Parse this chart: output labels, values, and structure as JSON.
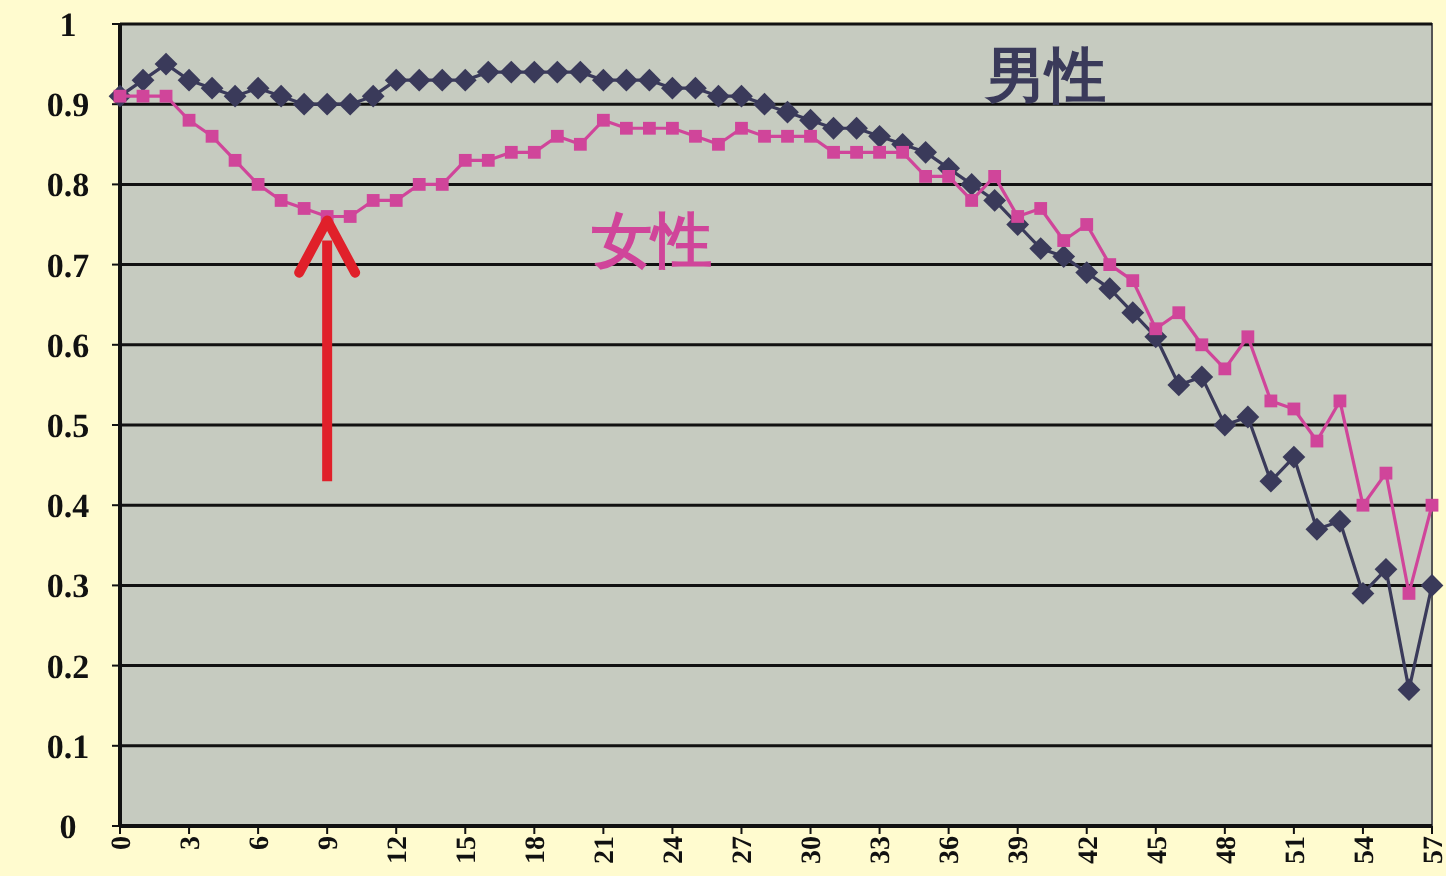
{
  "chart_data": {
    "type": "line",
    "x": [
      0,
      1,
      2,
      3,
      4,
      5,
      6,
      7,
      8,
      9,
      10,
      11,
      12,
      13,
      14,
      15,
      16,
      17,
      18,
      19,
      20,
      21,
      22,
      23,
      24,
      25,
      26,
      27,
      28,
      29,
      30,
      31,
      32,
      33,
      34,
      35,
      36,
      37,
      38,
      39,
      40,
      41,
      42,
      43,
      44,
      45,
      46,
      47,
      48,
      49,
      50,
      51,
      52,
      53,
      54,
      55,
      56,
      57
    ],
    "xlim": [
      0,
      57
    ],
    "xticks": [
      0,
      3,
      6,
      9,
      12,
      15,
      18,
      21,
      24,
      27,
      30,
      33,
      36,
      39,
      42,
      45,
      48,
      51,
      54,
      57
    ],
    "ylim": [
      0,
      1
    ],
    "yticks": [
      0,
      0.1,
      0.2,
      0.3,
      0.4,
      0.5,
      0.6,
      0.7,
      0.8,
      0.9,
      1
    ],
    "grid": "y",
    "line_style": "solid",
    "series": [
      {
        "name": "男性",
        "color": "#3a3a5a",
        "marker": "diamond",
        "values": [
          0.91,
          0.93,
          0.95,
          0.93,
          0.92,
          0.91,
          0.92,
          0.91,
          0.9,
          0.9,
          0.9,
          0.91,
          0.93,
          0.93,
          0.93,
          0.93,
          0.94,
          0.94,
          0.94,
          0.94,
          0.94,
          0.93,
          0.93,
          0.93,
          0.92,
          0.92,
          0.91,
          0.91,
          0.9,
          0.89,
          0.88,
          0.87,
          0.87,
          0.86,
          0.85,
          0.84,
          0.82,
          0.8,
          0.78,
          0.75,
          0.72,
          0.71,
          0.69,
          0.67,
          0.64,
          0.61,
          0.55,
          0.56,
          0.5,
          0.51,
          0.43,
          0.46,
          0.37,
          0.38,
          0.29,
          0.32,
          0.17,
          0.3
        ]
      },
      {
        "name": "女性",
        "color": "#d0459a",
        "marker": "square",
        "values": [
          0.91,
          0.91,
          0.91,
          0.88,
          0.86,
          0.83,
          0.8,
          0.78,
          0.77,
          0.76,
          0.76,
          0.78,
          0.78,
          0.8,
          0.8,
          0.83,
          0.83,
          0.84,
          0.84,
          0.86,
          0.85,
          0.88,
          0.87,
          0.87,
          0.87,
          0.86,
          0.85,
          0.87,
          0.86,
          0.86,
          0.86,
          0.84,
          0.84,
          0.84,
          0.84,
          0.81,
          0.81,
          0.78,
          0.81,
          0.76,
          0.77,
          0.73,
          0.75,
          0.7,
          0.68,
          0.62,
          0.64,
          0.6,
          0.57,
          0.61,
          0.53,
          0.52,
          0.48,
          0.53,
          0.4,
          0.44,
          0.29,
          0.4
        ]
      }
    ]
  }
}
